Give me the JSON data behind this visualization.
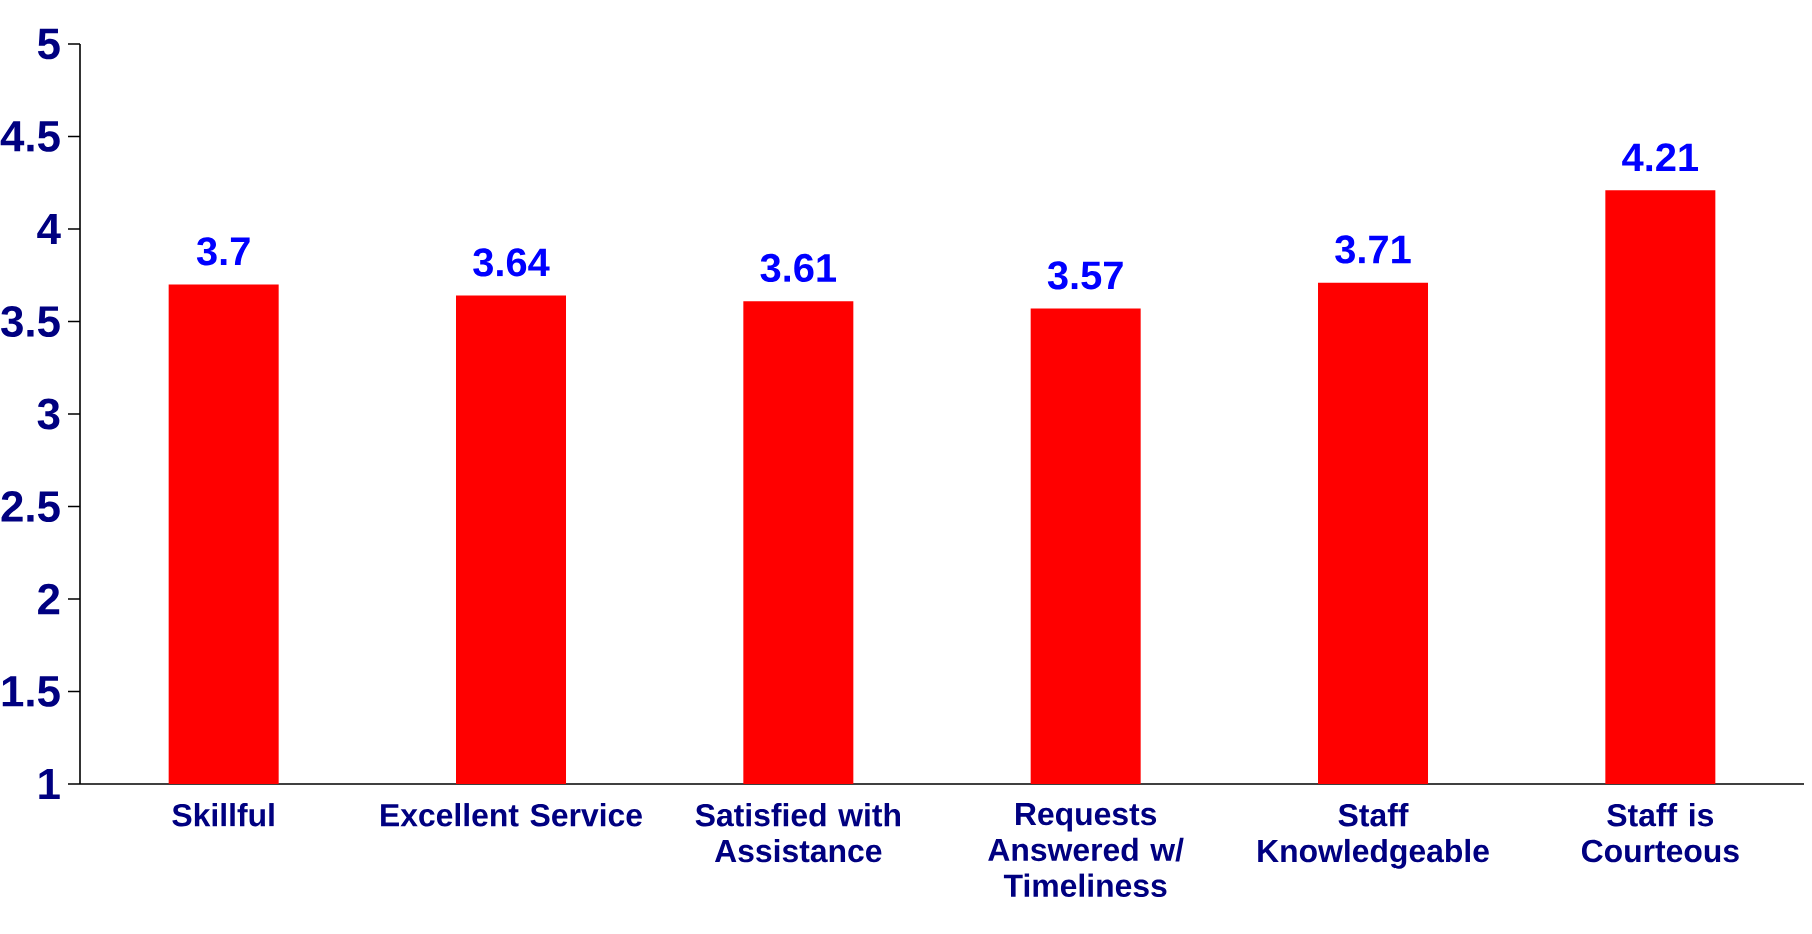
{
  "chart_data": {
    "type": "bar",
    "categories": [
      "Skillful",
      "Excellent Service",
      "Satisfied with Assistance",
      "Requests Answered w/ Timeliness",
      "Staff Knowledgeable",
      "Staff is Courteous"
    ],
    "values": [
      3.7,
      3.64,
      3.61,
      3.57,
      3.71,
      4.21
    ],
    "color": "#ff0000",
    "ylim": [
      1,
      5
    ],
    "yticks": [
      1,
      1.5,
      2,
      2.5,
      3,
      3.5,
      4,
      4.5,
      5
    ],
    "data_labels": true
  }
}
